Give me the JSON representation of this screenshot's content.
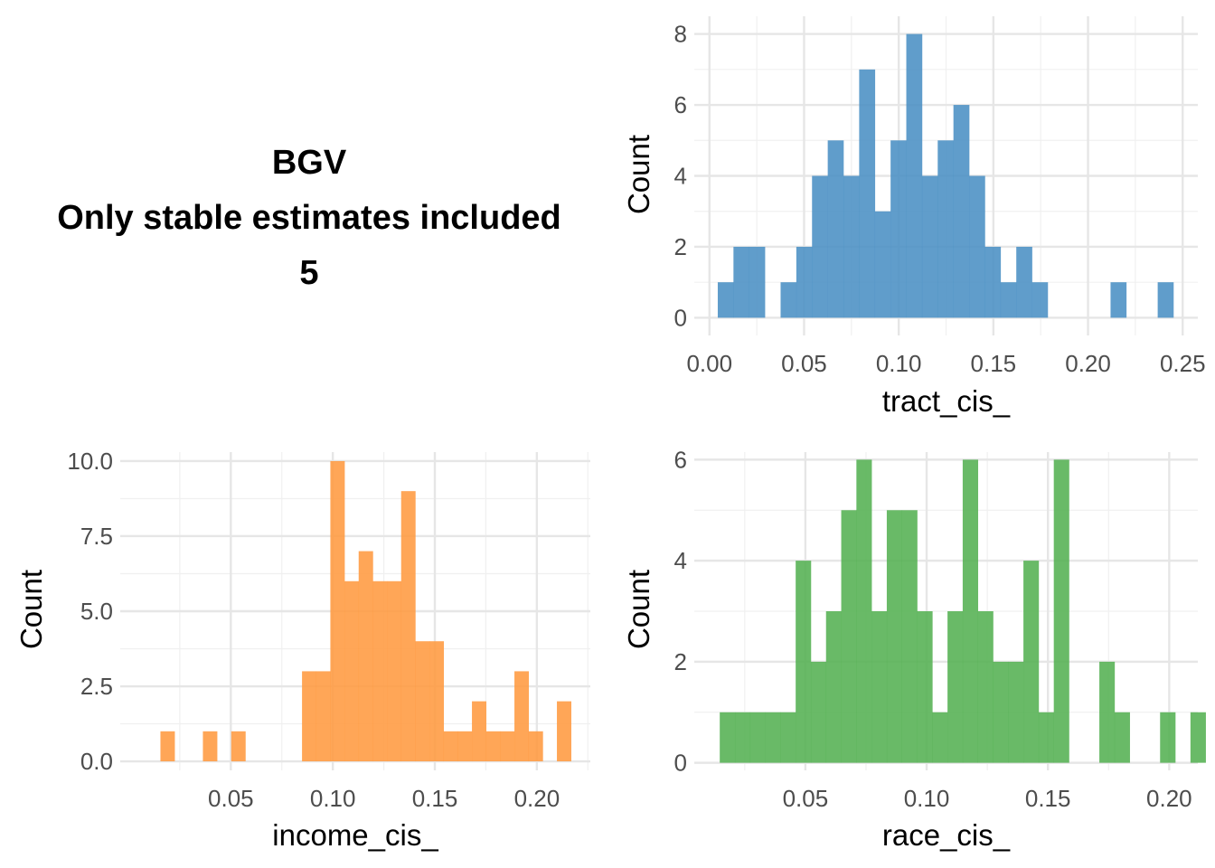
{
  "header": {
    "line1": "BGV",
    "line2": "Only stable estimates included",
    "line3": "5"
  },
  "chart_data": [
    {
      "type": "histogram",
      "id": "tract",
      "xlabel": "tract_cis_",
      "ylabel": "Count",
      "color": "#4a90c4",
      "xlim": [
        -0.008,
        0.258
      ],
      "ylim": [
        -0.5,
        8.5
      ],
      "xticks": [
        0.0,
        0.05,
        0.1,
        0.15,
        0.2,
        0.25
      ],
      "xtick_labels": [
        "0.00",
        "0.05",
        "0.10",
        "0.15",
        "0.20",
        "0.25"
      ],
      "yticks": [
        0,
        2,
        4,
        6,
        8
      ],
      "ytick_labels": [
        "0",
        "2",
        "4",
        "6",
        "8"
      ],
      "bin_start": 0.0044,
      "bin_width": 0.0083,
      "counts": [
        1,
        2,
        2,
        0,
        1,
        2,
        4,
        5,
        4,
        7,
        3,
        5,
        8,
        4,
        5,
        6,
        4,
        2,
        1,
        2,
        1,
        0,
        0,
        0,
        0,
        1,
        0,
        0,
        1
      ]
    },
    {
      "type": "histogram",
      "id": "income",
      "xlabel": "income_cis_",
      "ylabel": "Count",
      "color": "#ff9a40",
      "xlim": [
        -0.0042,
        0.2262
      ],
      "ylim": [
        -0.3,
        10.3
      ],
      "xticks": [
        0.05,
        0.1,
        0.15,
        0.2
      ],
      "xtick_labels": [
        "0.05",
        "0.10",
        "0.15",
        "0.20"
      ],
      "yticks": [
        0,
        2.5,
        5,
        7.5,
        10
      ],
      "ytick_labels": [
        "0.0",
        "2.5",
        "5.0",
        "7.5",
        "10.0"
      ],
      "bin_start": 0.0155,
      "bin_width": 0.00694,
      "counts": [
        1,
        0,
        0,
        1,
        0,
        1,
        0,
        0,
        0,
        0,
        3,
        3,
        10,
        6,
        7,
        6,
        6,
        9,
        4,
        4,
        1,
        1,
        2,
        1,
        1,
        3,
        1,
        0,
        2
      ]
    },
    {
      "type": "histogram",
      "id": "race",
      "xlabel": "race_cis_",
      "ylabel": "Count",
      "color": "#54b152",
      "xlim": [
        0.0042,
        0.2118
      ],
      "ylim": [
        -0.15,
        6.15
      ],
      "xticks": [
        0.05,
        0.1,
        0.15,
        0.2
      ],
      "xtick_labels": [
        "0.05",
        "0.10",
        "0.15",
        "0.20"
      ],
      "yticks": [
        0,
        2,
        4,
        6
      ],
      "ytick_labels": [
        "0",
        "2",
        "4",
        "6"
      ],
      "bin_start": 0.0147,
      "bin_width": 0.00626,
      "counts": [
        1,
        1,
        1,
        1,
        1,
        4,
        2,
        3,
        5,
        6,
        3,
        5,
        5,
        3,
        1,
        3,
        6,
        3,
        2,
        2,
        4,
        1,
        6,
        0,
        0,
        2,
        1,
        0,
        0,
        1,
        0,
        1
      ]
    }
  ]
}
